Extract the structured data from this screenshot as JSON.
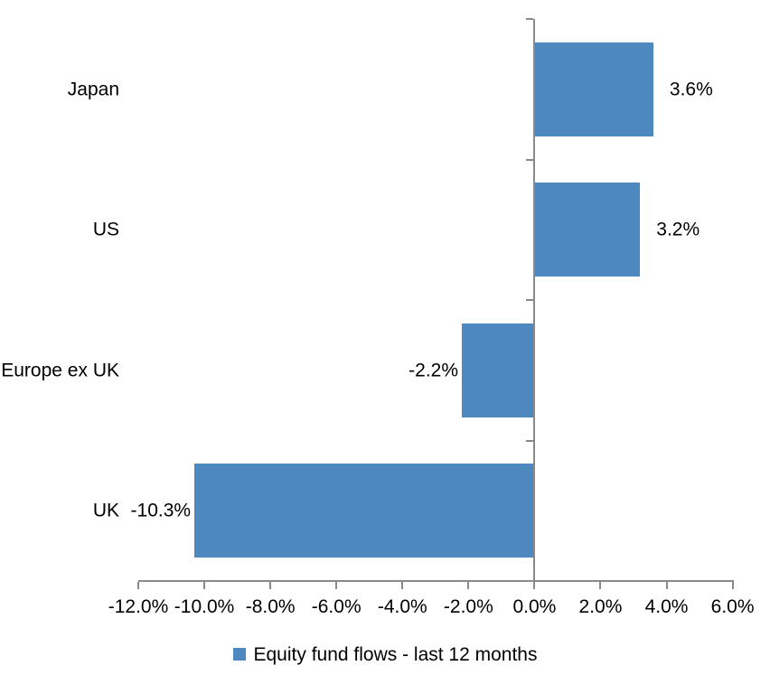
{
  "chart_data": {
    "type": "bar",
    "orientation": "horizontal",
    "title": "",
    "categories": [
      "Japan",
      "US",
      "Europe ex UK",
      "UK"
    ],
    "values": [
      3.6,
      3.2,
      -2.2,
      -10.3
    ],
    "data_labels": [
      "3.6%",
      "3.2%",
      "-2.2%",
      "-10.3%"
    ],
    "series": [
      {
        "name": "Equity fund flows - last 12 months",
        "values": [
          3.6,
          3.2,
          -2.2,
          -10.3
        ]
      }
    ],
    "xlim": [
      -12,
      6
    ],
    "x_ticks": [
      -12,
      -10,
      -8,
      -6,
      -4,
      -2,
      0,
      2,
      4,
      6
    ],
    "x_tick_labels": [
      "-12.0%",
      "-10.0%",
      "-8.0%",
      "-6.0%",
      "-4.0%",
      "-2.0%",
      "0.0%",
      "2.0%",
      "4.0%",
      "6.0%"
    ],
    "grid": false,
    "legend_position": "bottom",
    "bar_color": "#4D88BE",
    "bar_border_color": "#4D88BE",
    "axis_color": "#898989",
    "text_color": "#000000"
  },
  "legend": {
    "marker": "square-icon",
    "label": "Equity fund flows - last 12 months"
  }
}
